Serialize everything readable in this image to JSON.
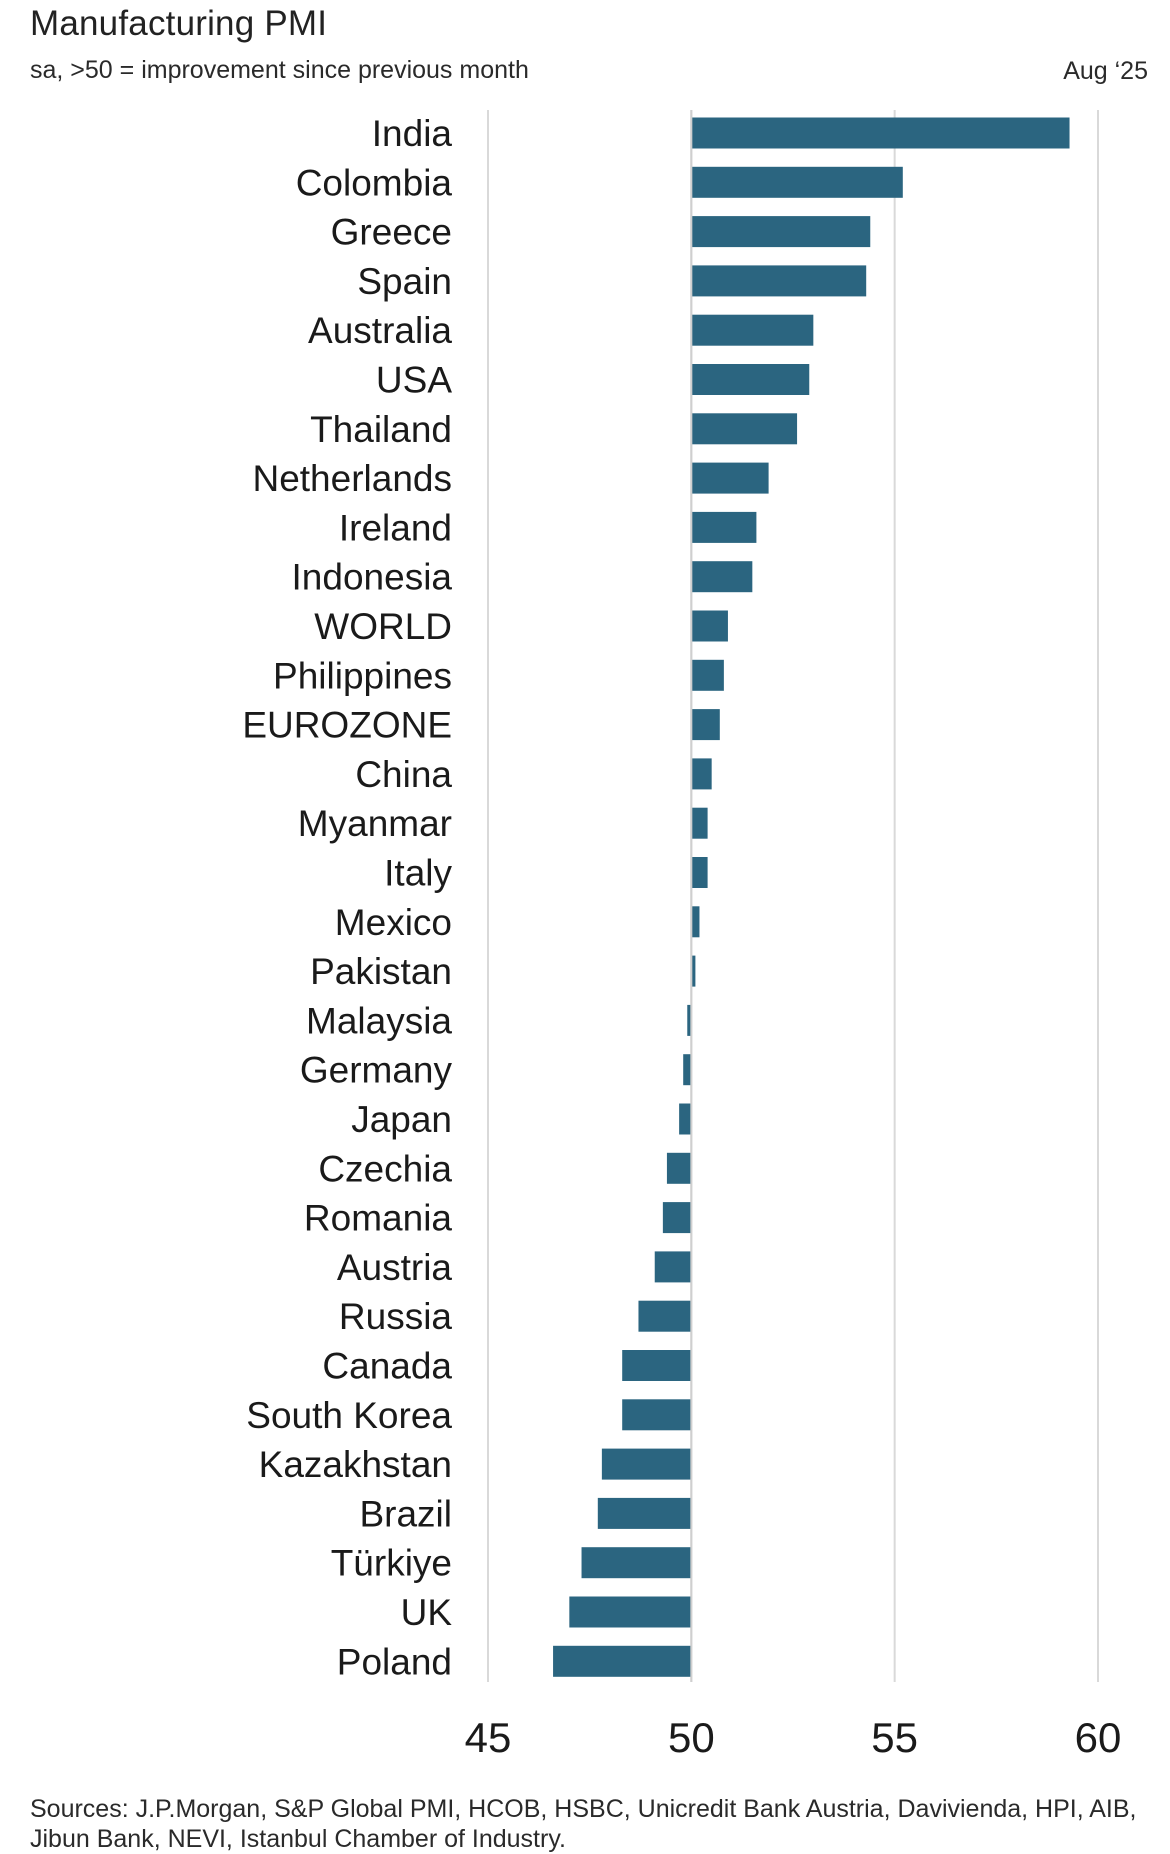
{
  "chart_data": {
    "type": "bar",
    "orientation": "horizontal",
    "title": "Manufacturing PMI",
    "subtitle": "sa, >50 = improvement since previous month",
    "period": "Aug ‘25",
    "categories": [
      "India",
      "Colombia",
      "Greece",
      "Spain",
      "Australia",
      "USA",
      "Thailand",
      "Netherlands",
      "Ireland",
      "Indonesia",
      "WORLD",
      "Philippines",
      "EUROZONE",
      "China",
      "Myanmar",
      "Italy",
      "Mexico",
      "Pakistan",
      "Malaysia",
      "Germany",
      "Japan",
      "Czechia",
      "Romania",
      "Austria",
      "Russia",
      "Canada",
      "South Korea",
      "Kazakhstan",
      "Brazil",
      "Türkiye",
      "UK",
      "Poland"
    ],
    "values": [
      59.3,
      55.2,
      54.4,
      54.3,
      53.0,
      52.9,
      52.6,
      51.9,
      51.6,
      51.5,
      50.9,
      50.8,
      50.7,
      50.5,
      50.4,
      50.4,
      50.2,
      50.1,
      49.9,
      49.8,
      49.7,
      49.4,
      49.3,
      49.1,
      48.7,
      48.3,
      48.3,
      47.8,
      47.7,
      47.3,
      47.0,
      46.6
    ],
    "baseline": 50,
    "xlim": [
      45,
      60
    ],
    "xticks": [
      "45",
      "50",
      "55",
      "60"
    ],
    "xlabel": "",
    "ylabel": "",
    "grid": "vertical",
    "bar_color": "#2b6580",
    "source": "Sources: J.P.Morgan, S&P Global PMI, HCOB, HSBC, Unicredit Bank Austria, Davivienda, HPI, AIB, Jibun Bank, NEVI, Istanbul Chamber of Industry."
  }
}
